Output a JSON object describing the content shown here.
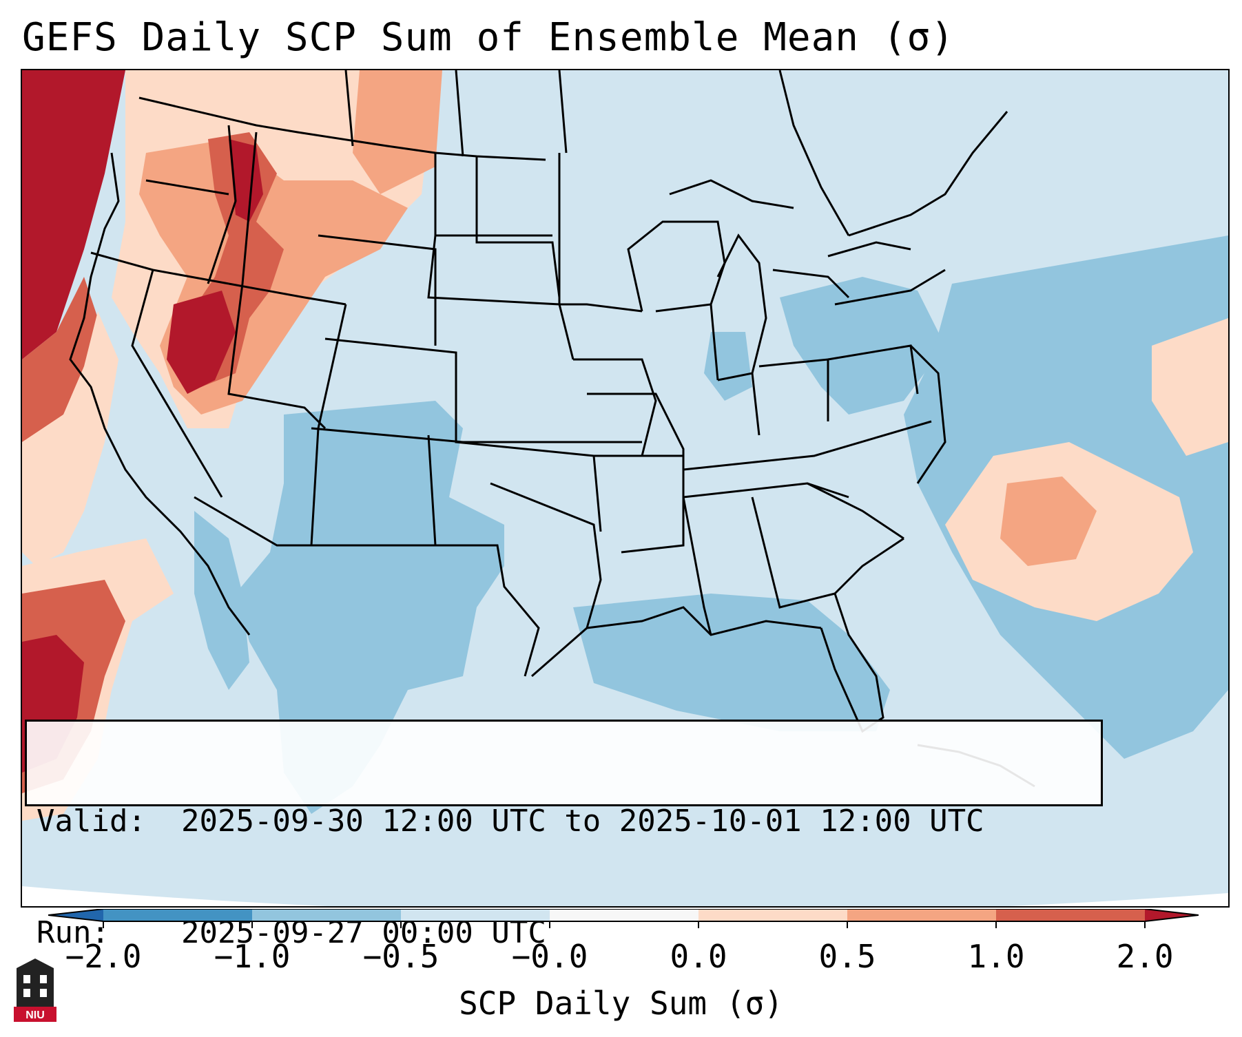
{
  "title": "GEFS Daily SCP Sum of Ensemble Mean (σ)",
  "info": {
    "valid_label": "Valid:",
    "valid_value": "2025-09-30 12:00 UTC to 2025-10-01 12:00 UTC",
    "run_label": "Run:",
    "run_value": "2025-09-27 00:00 UTC"
  },
  "colorbar": {
    "label": "SCP Daily Sum (σ)",
    "ticks": [
      "−2.0",
      "−1.0",
      "−0.5",
      "−0.0",
      "0.0",
      "0.5",
      "1.0",
      "2.0"
    ],
    "colors": {
      "under": "#2166ac",
      "b1": "#4393c3",
      "b2": "#92c5de",
      "b3": "#d1e5f0",
      "b4": "#f7f7f7",
      "b5": "#fddbc7",
      "b6": "#f4a582",
      "b7": "#d6604d",
      "over": "#b2182b"
    }
  },
  "logo": {
    "text": "NIU"
  }
}
